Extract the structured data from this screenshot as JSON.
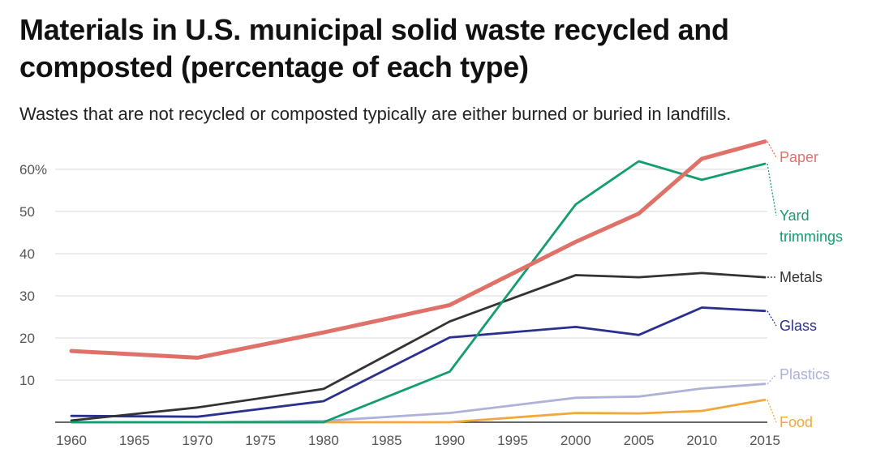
{
  "chart_data": {
    "type": "line",
    "title": "Materials in U.S. municipal solid waste recycled and composted (percentage of each type)",
    "subtitle": "Wastes that are not recycled or composted typically are either burned or buried in landfills.",
    "x": [
      1960,
      1970,
      1980,
      1990,
      2000,
      2005,
      2010,
      2015
    ],
    "x_tick_labels": [
      "1960",
      "1965",
      "1970",
      "1975",
      "1980",
      "1985",
      "1990",
      "1995",
      "2000",
      "2005",
      "2010",
      "2015"
    ],
    "x_ticks": [
      1960,
      1965,
      1970,
      1975,
      1980,
      1985,
      1990,
      1995,
      2000,
      2005,
      2010,
      2015
    ],
    "y_tick_labels": [
      "60%",
      "50",
      "40",
      "30",
      "20",
      "10"
    ],
    "y_ticks": [
      60,
      50,
      40,
      30,
      20,
      10
    ],
    "xlim": [
      1960,
      2015
    ],
    "ylim": [
      0,
      67
    ],
    "grid": true,
    "legend": "direct labels at right end of lines",
    "series": [
      {
        "name": "Paper",
        "label_lines": [
          "Paper"
        ],
        "color": "#e07168",
        "values": [
          16.9,
          15.3,
          21.3,
          27.8,
          42.8,
          49.5,
          62.5,
          66.6
        ]
      },
      {
        "name": "Yard trimmings",
        "label_lines": [
          "Yard",
          "trimmings"
        ],
        "color": "#149d6e",
        "values": [
          0,
          0,
          0,
          12.0,
          51.7,
          61.9,
          57.5,
          61.3
        ]
      },
      {
        "name": "Metals",
        "label_lines": [
          "Metals"
        ],
        "color": "#333333",
        "values": [
          0.4,
          3.5,
          7.9,
          23.9,
          34.9,
          34.4,
          35.4,
          34.4
        ]
      },
      {
        "name": "Glass",
        "label_lines": [
          "Glass"
        ],
        "color": "#2b2f8e",
        "values": [
          1.5,
          1.3,
          5.0,
          20.1,
          22.6,
          20.7,
          27.2,
          26.4
        ]
      },
      {
        "name": "Plastics",
        "label_lines": [
          "Plastics"
        ],
        "color": "#aeb1d8",
        "values": [
          0,
          0,
          0.3,
          2.2,
          5.8,
          6.1,
          8.0,
          9.1
        ]
      },
      {
        "name": "Food",
        "label_lines": [
          "Food"
        ],
        "color": "#f1a83a",
        "values": [
          0,
          0,
          0,
          0,
          2.2,
          2.1,
          2.7,
          5.3
        ]
      }
    ]
  }
}
